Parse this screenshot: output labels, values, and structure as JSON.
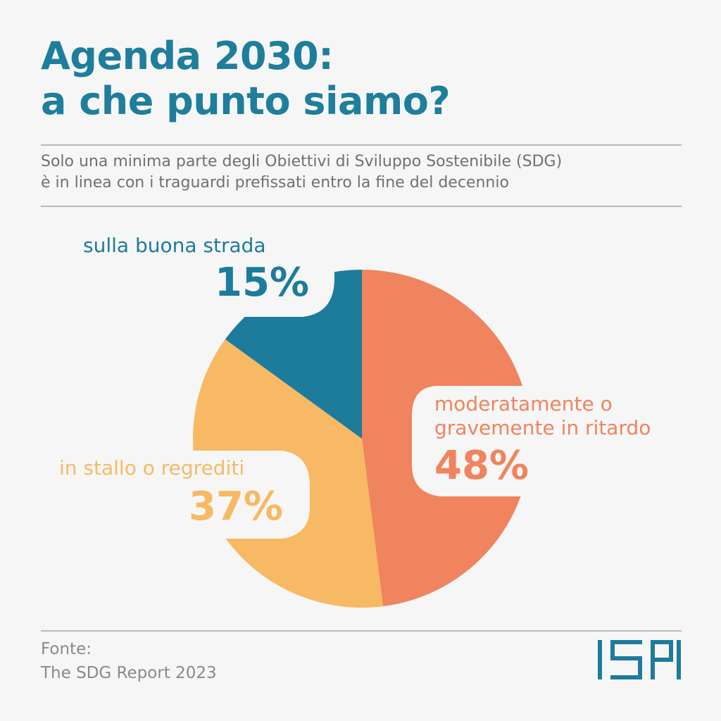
{
  "header": {
    "title_line1": "Agenda 2030:",
    "title_line2": "a che punto siamo?",
    "subtitle_line1": "Solo una minima parte degli Obiettivi di Sviluppo Sostenibile (SDG)",
    "subtitle_line2": "è in linea con i traguardi prefissati entro la fine del decennio"
  },
  "chart_data": {
    "type": "pie",
    "slices": [
      {
        "label": "moderatamente o gravemente in ritardo",
        "label_line1": "moderatamente o",
        "label_line2": "gravemente in ritardo",
        "value": 48,
        "value_label": "48%",
        "color": "#ef845e"
      },
      {
        "label": "in stallo o regrediti",
        "value": 37,
        "value_label": "37%",
        "color": "#f7b963"
      },
      {
        "label": "sulla buona strada",
        "value": 15,
        "value_label": "15%",
        "color": "#1d7b9c"
      }
    ],
    "start_angle": "12 o'clock, clockwise"
  },
  "footer": {
    "source_label": "Fonte:",
    "source_text": "The SDG Report 2023",
    "logo_text": "ISPI",
    "logo_color": "#1d7b9c"
  }
}
